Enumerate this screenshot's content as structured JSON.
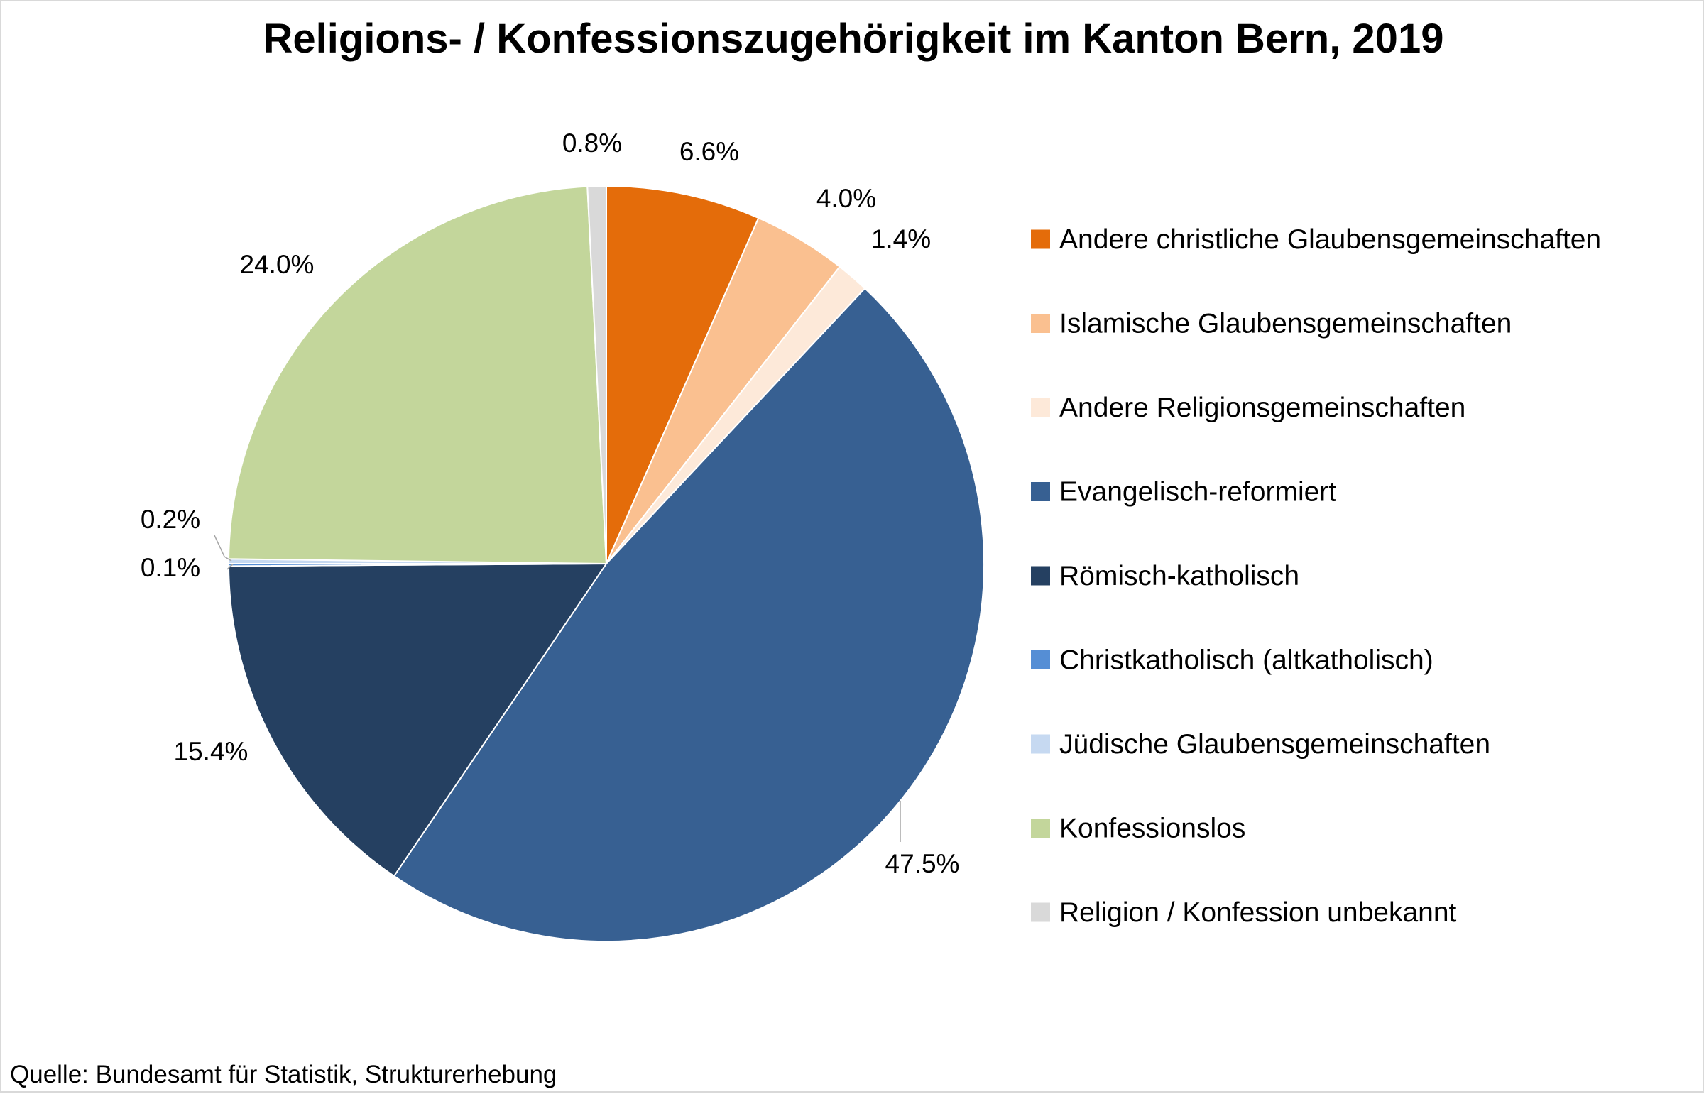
{
  "chart_data": {
    "type": "pie",
    "title": "Religions- / Konfessionszugehörigkeit  im Kanton Bern, 2019",
    "source": "Quelle: Bundesamt für Statistik, Strukturerhebung",
    "unit": "%",
    "start_angle_deg": 0,
    "direction": "clockwise",
    "legend_position": "right",
    "slices": [
      {
        "name": "Andere christliche Glaubensgemeinschaften",
        "value": 6.6,
        "label": "6.6%",
        "color": "#E46C0A"
      },
      {
        "name": "Islamische Glaubensgemeinschaften",
        "value": 4.0,
        "label": "4.0%",
        "color": "#FAC090"
      },
      {
        "name": "Andere Religionsgemeinschaften",
        "value": 1.4,
        "label": "1.4%",
        "color": "#FDE9D9"
      },
      {
        "name": "Evangelisch-reformiert",
        "value": 47.5,
        "label": "47.5%",
        "color": "#376092"
      },
      {
        "name": "Römisch-katholisch",
        "value": 15.4,
        "label": "15.4%",
        "color": "#254061"
      },
      {
        "name": "Christkatholisch (altkatholisch)",
        "value": 0.1,
        "label": "0.1%",
        "color": "#558ED5"
      },
      {
        "name": "Jüdische Glaubensgemeinschaften",
        "value": 0.2,
        "label": "0.2%",
        "color": "#C6D9F1"
      },
      {
        "name": "Konfessionslos",
        "value": 24.0,
        "label": "24.0%",
        "color": "#C3D69B"
      },
      {
        "name": "Religion / Konfession unbekannt",
        "value": 0.8,
        "label": "0.8%",
        "color": "#D9D9D9"
      }
    ]
  }
}
